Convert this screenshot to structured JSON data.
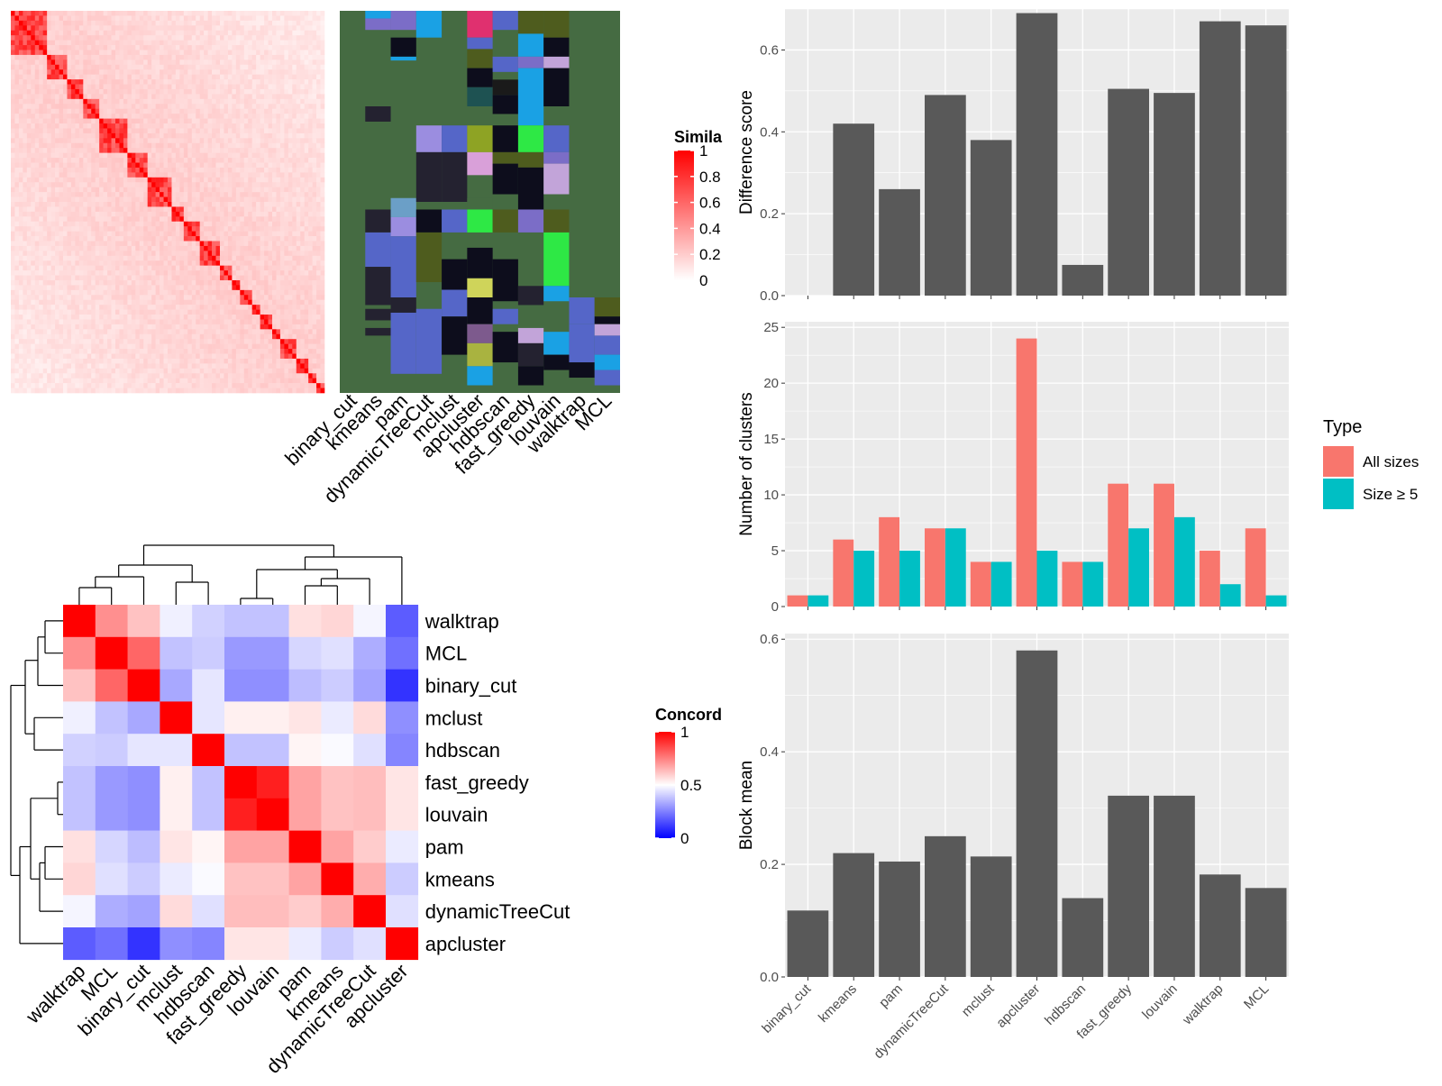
{
  "colors": {
    "panel_bg": "#ebebeb",
    "grid": "#ffffff",
    "bar": "#595959",
    "all_sizes": "#f8766d",
    "size_ge5": "#00bfc4",
    "heat_high": "#ff0000",
    "heat_low": "#ffffff",
    "conc_low": "#0000ff",
    "assign_bg": "#456b42"
  },
  "methods_order": [
    "binary_cut",
    "kmeans",
    "pam",
    "dynamicTreeCut",
    "mclust",
    "apcluster",
    "hdbscan",
    "fast_greedy",
    "louvain",
    "walktrap",
    "MCL"
  ],
  "chart_data": [
    {
      "type": "heatmap",
      "id": "similarity",
      "legend_title": "Simila",
      "legend_ticks": [
        "1",
        "0.8",
        "0.6",
        "0.4",
        "0.2",
        "0"
      ],
      "n_terms": 78,
      "blocks": [
        9,
        5,
        4,
        4,
        7,
        5,
        6,
        3,
        4,
        5,
        3,
        2,
        3,
        2,
        3,
        2,
        4,
        3,
        2,
        2
      ]
    },
    {
      "type": "heatmap",
      "id": "cluster_assignment",
      "columns": [
        "binary_cut",
        "kmeans",
        "pam",
        "dynamicTreeCut",
        "mclust",
        "apcluster",
        "hdbscan",
        "fast_greedy",
        "louvain",
        "walktrap",
        "MCL"
      ]
    },
    {
      "type": "heatmap",
      "id": "concordance",
      "legend_title": "Concord",
      "legend_ticks": [
        "1",
        "0.5",
        "0"
      ],
      "labels": [
        "walktrap",
        "MCL",
        "binary_cut",
        "mclust",
        "hdbscan",
        "fast_greedy",
        "louvain",
        "pam",
        "kmeans",
        "dynamicTreeCut",
        "apcluster"
      ],
      "values": [
        [
          1.0,
          0.72,
          0.62,
          0.47,
          0.41,
          0.38,
          0.38,
          0.56,
          0.58,
          0.48,
          0.18
        ],
        [
          0.72,
          1.0,
          0.8,
          0.38,
          0.4,
          0.3,
          0.3,
          0.42,
          0.44,
          0.34,
          0.22
        ],
        [
          0.62,
          0.8,
          1.0,
          0.33,
          0.45,
          0.28,
          0.28,
          0.37,
          0.4,
          0.32,
          0.1
        ],
        [
          0.47,
          0.38,
          0.33,
          1.0,
          0.45,
          0.53,
          0.53,
          0.55,
          0.46,
          0.57,
          0.28
        ],
        [
          0.41,
          0.4,
          0.45,
          0.45,
          1.0,
          0.38,
          0.38,
          0.52,
          0.49,
          0.44,
          0.26
        ],
        [
          0.38,
          0.3,
          0.28,
          0.53,
          0.38,
          1.0,
          0.94,
          0.68,
          0.62,
          0.63,
          0.55
        ],
        [
          0.38,
          0.3,
          0.28,
          0.53,
          0.38,
          0.94,
          1.0,
          0.68,
          0.62,
          0.63,
          0.55
        ],
        [
          0.56,
          0.42,
          0.37,
          0.55,
          0.52,
          0.68,
          0.68,
          1.0,
          0.68,
          0.6,
          0.46
        ],
        [
          0.58,
          0.44,
          0.4,
          0.46,
          0.49,
          0.62,
          0.62,
          0.68,
          1.0,
          0.66,
          0.4
        ],
        [
          0.48,
          0.34,
          0.32,
          0.57,
          0.44,
          0.63,
          0.63,
          0.6,
          0.66,
          1.0,
          0.44
        ],
        [
          0.18,
          0.22,
          0.1,
          0.28,
          0.26,
          0.55,
          0.55,
          0.46,
          0.4,
          0.44,
          1.0
        ]
      ]
    },
    {
      "type": "bar",
      "id": "difference_score",
      "categories": [
        "binary_cut",
        "kmeans",
        "pam",
        "dynamicTreeCut",
        "mclust",
        "apcluster",
        "hdbscan",
        "fast_greedy",
        "louvain",
        "walktrap",
        "MCL"
      ],
      "values": [
        0.0,
        0.42,
        0.26,
        0.49,
        0.38,
        0.69,
        0.075,
        0.505,
        0.495,
        0.67,
        0.66
      ],
      "ylabel": "Difference score",
      "ylim": [
        0,
        0.7
      ],
      "yticks": [
        "0.0",
        "0.2",
        "0.4",
        "0.6"
      ]
    },
    {
      "type": "bar",
      "id": "number_of_clusters",
      "categories": [
        "binary_cut",
        "kmeans",
        "pam",
        "dynamicTreeCut",
        "mclust",
        "apcluster",
        "hdbscan",
        "fast_greedy",
        "louvain",
        "walktrap",
        "MCL"
      ],
      "series": [
        {
          "name": "All sizes",
          "values": [
            1,
            6,
            8,
            7,
            4,
            24,
            4,
            11,
            11,
            5,
            7
          ]
        },
        {
          "name": "Size ≥ 5",
          "values": [
            1,
            5,
            5,
            7,
            4,
            5,
            4,
            7,
            8,
            2,
            1
          ]
        }
      ],
      "ylabel": "Number of clusters",
      "ylim": [
        0,
        25.5
      ],
      "yticks": [
        "0",
        "5",
        "10",
        "15",
        "20",
        "25"
      ],
      "legend_title": "Type",
      "legend_position": "right"
    },
    {
      "type": "bar",
      "id": "block_mean",
      "categories": [
        "binary_cut",
        "kmeans",
        "pam",
        "dynamicTreeCut",
        "mclust",
        "apcluster",
        "hdbscan",
        "fast_greedy",
        "louvain",
        "walktrap",
        "MCL"
      ],
      "values": [
        0.118,
        0.22,
        0.205,
        0.25,
        0.214,
        0.58,
        0.14,
        0.322,
        0.322,
        0.182,
        0.158
      ],
      "ylabel": "Block mean",
      "ylim": [
        0,
        0.61
      ],
      "yticks": [
        "0.0",
        "0.2",
        "0.4",
        "0.6"
      ]
    }
  ]
}
